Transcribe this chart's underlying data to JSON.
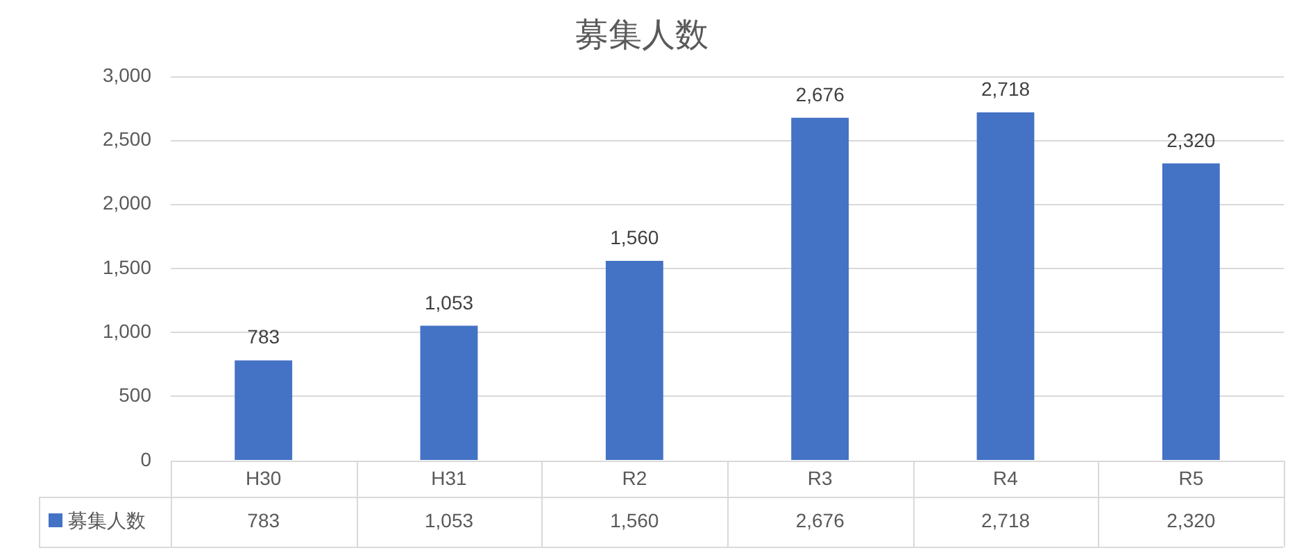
{
  "chart_data": {
    "type": "bar",
    "title": "募集人数",
    "categories": [
      "H30",
      "H31",
      "R2",
      "R3",
      "R4",
      "R5"
    ],
    "series": [
      {
        "name": "募集人数",
        "color": "#4472c4",
        "values": [
          783,
          1053,
          1560,
          2676,
          2718,
          2320
        ],
        "value_labels": [
          "783",
          "1,053",
          "1,560",
          "2,676",
          "2,718",
          "2,320"
        ]
      }
    ],
    "ylim": [
      0,
      3000
    ],
    "yticks": [
      0,
      500,
      {
        "value": 1000,
        "label": "1,000"
      },
      {
        "value": 1500,
        "label": "1,500"
      },
      {
        "value": 2000,
        "label": "2,000"
      },
      {
        "value": 2500,
        "label": "2,500"
      },
      {
        "value": 3000,
        "label": "3,000"
      }
    ],
    "grid": "y",
    "legend": "bottom left"
  }
}
